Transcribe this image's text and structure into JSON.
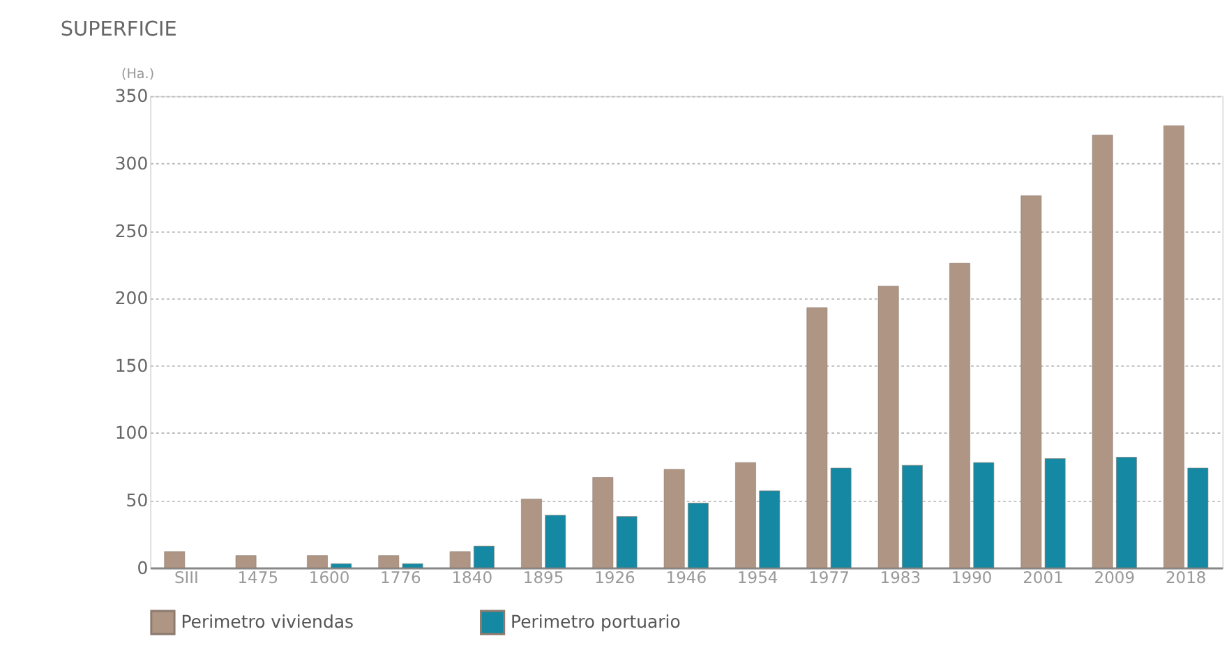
{
  "chart_data": {
    "type": "bar",
    "title": "SUPERFICIE",
    "ylabel": "(Ha.)",
    "categories": [
      "SIII",
      "1475",
      "1600",
      "1776",
      "1840",
      "1895",
      "1926",
      "1946",
      "1954",
      "1977",
      "1983",
      "1990",
      "2001",
      "2009",
      "2018"
    ],
    "series": [
      {
        "name": "Perimetro viviendas",
        "color": "#ae9584",
        "values": [
          12,
          9,
          9,
          9,
          12,
          51,
          67,
          73,
          78,
          193,
          209,
          226,
          276,
          321,
          328
        ]
      },
      {
        "name": "Perimetro portuario",
        "color": "#1589a3",
        "values": [
          null,
          null,
          3,
          3,
          16,
          39,
          38,
          48,
          57,
          74,
          76,
          78,
          81,
          82,
          74
        ]
      }
    ],
    "ylim": [
      0,
      350
    ],
    "yticks": [
      0,
      50,
      100,
      150,
      200,
      250,
      300,
      350
    ],
    "grid": "y",
    "legend": "bottom"
  }
}
